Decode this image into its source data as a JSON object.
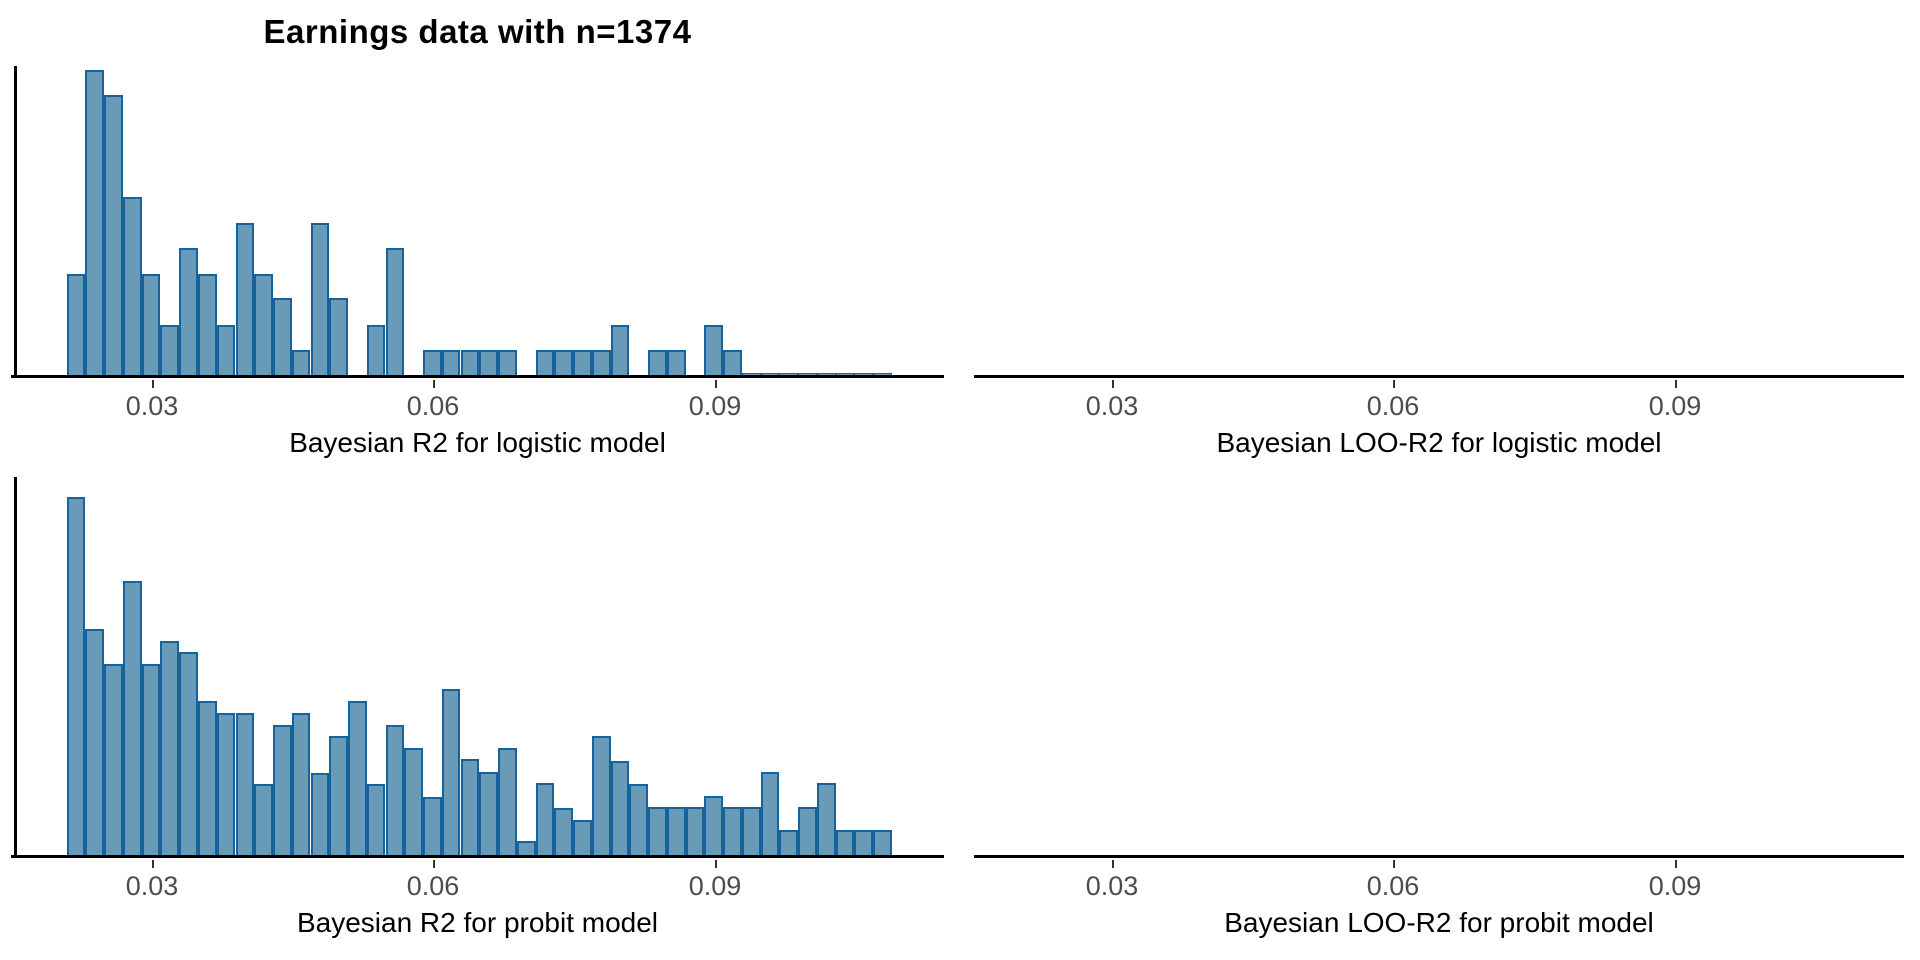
{
  "title": "Earnings data with n=1374",
  "colors": {
    "background": "#ffffff",
    "bar_fill": "#699bb8",
    "bar_stroke": "#15639d",
    "axis_line": "#000000",
    "tick_label": "#4d4d4d",
    "axis_title": "#000000",
    "title": "#000000"
  },
  "chart_data": [
    {
      "id": "r2_logistic",
      "type": "bar",
      "subtype": "histogram",
      "xlabel": "Bayesian R2 for logistic model",
      "ylabel": "",
      "x_ticks": [
        0.03,
        0.06,
        0.09
      ],
      "x_tick_labels": [
        "0.03",
        "0.06",
        "0.09"
      ],
      "x_range": [
        0.0148,
        0.1141
      ],
      "grid": false,
      "legend": false,
      "y_axis_shown": true,
      "y_tick_labels_shown": false,
      "bin_start": 0.0209,
      "bin_width": 0.002,
      "counts_rel": [
        103,
        307,
        282,
        180,
        103,
        52,
        129,
        103,
        52,
        154,
        103,
        79,
        27,
        154,
        79,
        0,
        52,
        129,
        0,
        27,
        27,
        27,
        27,
        27,
        0,
        27,
        27,
        27,
        27,
        52,
        0,
        27,
        27,
        0,
        52,
        27,
        4,
        4,
        4,
        4,
        4,
        4,
        4,
        4
      ]
    },
    {
      "id": "loo_r2_logistic",
      "type": "bar",
      "subtype": "histogram",
      "xlabel": "Bayesian LOO-R2 for logistic model",
      "ylabel": "",
      "x_ticks": [
        0.03,
        0.06,
        0.09
      ],
      "x_tick_labels": [
        "0.03",
        "0.06",
        "0.09"
      ],
      "x_range": [
        0.0155,
        0.1148
      ],
      "grid": false,
      "legend": false,
      "y_axis_shown": false,
      "y_tick_labels_shown": false,
      "bin_start": 0.0209,
      "bin_width": 0.002,
      "counts_rel": []
    },
    {
      "id": "r2_probit",
      "type": "bar",
      "subtype": "histogram",
      "xlabel": "Bayesian R2 for probit model",
      "ylabel": "",
      "x_ticks": [
        0.03,
        0.06,
        0.09
      ],
      "x_tick_labels": [
        "0.03",
        "0.06",
        "0.09"
      ],
      "x_range": [
        0.0148,
        0.1141
      ],
      "grid": false,
      "legend": false,
      "y_axis_shown": true,
      "y_tick_labels_shown": false,
      "bin_start": 0.0209,
      "bin_width": 0.002,
      "counts_rel": [
        360,
        228,
        193,
        276,
        193,
        216,
        205,
        156,
        144,
        144,
        73,
        132,
        144,
        84,
        121,
        156,
        73,
        132,
        109,
        60,
        168,
        98,
        85,
        109,
        16,
        74,
        49,
        37,
        121,
        96,
        73,
        50,
        50,
        50,
        61,
        50,
        50,
        85,
        27,
        50,
        74,
        27,
        27,
        27
      ]
    },
    {
      "id": "loo_r2_probit",
      "type": "bar",
      "subtype": "histogram",
      "xlabel": "Bayesian LOO-R2 for probit model",
      "ylabel": "",
      "x_ticks": [
        0.03,
        0.06,
        0.09
      ],
      "x_tick_labels": [
        "0.03",
        "0.06",
        "0.09"
      ],
      "x_range": [
        0.0155,
        0.1148
      ],
      "grid": false,
      "legend": false,
      "y_axis_shown": false,
      "y_tick_labels_shown": false,
      "bin_start": 0.0209,
      "bin_width": 0.002,
      "counts_rel": []
    }
  ]
}
